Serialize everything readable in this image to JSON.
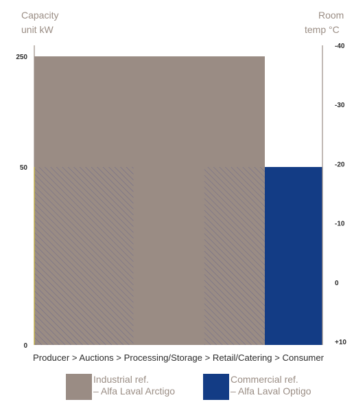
{
  "chart_data": {
    "type": "bar",
    "title": "",
    "left_axis": {
      "label_line1": "Capacity",
      "label_line2": "unit kW",
      "ticks": [
        {
          "value": 250,
          "label": "250"
        },
        {
          "value": 50,
          "label": "50"
        },
        {
          "value": 0,
          "label": "0"
        }
      ]
    },
    "right_axis": {
      "label_line1": "Room",
      "label_line2": "temp °C",
      "range": [
        10,
        -40
      ],
      "ticks": [
        {
          "value": -40,
          "label": "-40"
        },
        {
          "value": -30,
          "label": "-30"
        },
        {
          "value": -20,
          "label": "-20"
        },
        {
          "value": -10,
          "label": "-10"
        },
        {
          "value": 0,
          "label": "0"
        },
        {
          "value": 10,
          "label": "+10"
        }
      ]
    },
    "xlabel": "Producer > Auctions > Processing/Storage > Retail/Catering > Consumer",
    "bands": [
      {
        "series": "industrial",
        "span": [
          0,
          4
        ],
        "capacity_kw": 250,
        "pattern": "solid"
      },
      {
        "series": "industrial",
        "span": [
          0,
          1.72
        ],
        "capacity_kw": 50,
        "pattern": "hatched"
      },
      {
        "series": "industrial",
        "span": [
          2.95,
          4
        ],
        "capacity_kw": 50,
        "pattern": "hatched"
      },
      {
        "series": "commercial",
        "span": [
          4,
          5
        ],
        "capacity_kw": 50,
        "pattern": "solid"
      }
    ],
    "legend": [
      {
        "key": "industrial",
        "line1": "Industrial ref.",
        "line2": "– Alfa Laval Arctigo",
        "color": "#9a8c84"
      },
      {
        "key": "commercial",
        "line1": "Commercial ref.",
        "line2": "– Alfa Laval Optigo",
        "color": "#133c85"
      }
    ],
    "colors": {
      "industrial": "#9a8c84",
      "commercial": "#133c85",
      "hatch": "#6f6b8a",
      "axis": "#9a8c84",
      "axis_label": "#9a8d84",
      "tick": "#2b2b2b",
      "accent_line": "#c8b64a"
    }
  }
}
